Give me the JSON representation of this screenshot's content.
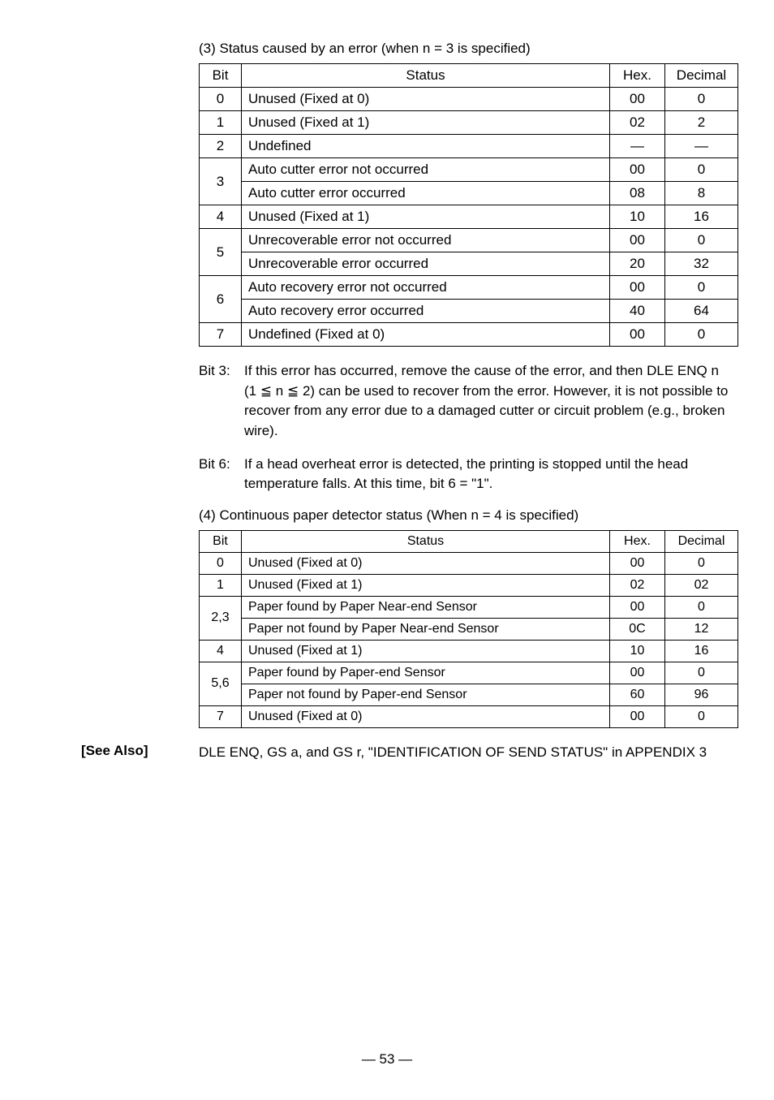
{
  "table3": {
    "caption": "(3) Status caused by an error (when n = 3 is specified)",
    "headers": {
      "bit": "Bit",
      "status": "Status",
      "hex": "Hex.",
      "dec": "Decimal"
    },
    "rows": [
      {
        "bit": "0",
        "status": "Unused (Fixed at 0)",
        "hex": "00",
        "dec": "0"
      },
      {
        "bit": "1",
        "status": "Unused (Fixed at 1)",
        "hex": "02",
        "dec": "2"
      },
      {
        "bit": "2",
        "status": "Undefined",
        "hex": "—",
        "dec": "—"
      },
      {
        "bit": "3",
        "status": "Auto cutter error not occurred",
        "hex": "00",
        "dec": "0",
        "rowspan": 2
      },
      {
        "status": "Auto cutter error occurred",
        "hex": "08",
        "dec": "8"
      },
      {
        "bit": "4",
        "status": "Unused (Fixed at 1)",
        "hex": "10",
        "dec": "16"
      },
      {
        "bit": "5",
        "status": "Unrecoverable error not occurred",
        "hex": "00",
        "dec": "0",
        "rowspan": 2
      },
      {
        "status": "Unrecoverable error occurred",
        "hex": "20",
        "dec": "32"
      },
      {
        "bit": "6",
        "status": "Auto recovery error not occurred",
        "hex": "00",
        "dec": "0",
        "rowspan": 2
      },
      {
        "status": "Auto recovery error occurred",
        "hex": "40",
        "dec": "64"
      },
      {
        "bit": "7",
        "status": "Undefined (Fixed at 0)",
        "hex": "00",
        "dec": "0"
      }
    ]
  },
  "bit3": {
    "label": "Bit 3:",
    "text": "If this error has occurred, remove the cause of the error, and then DLE ENQ n (1 ≦ n ≦ 2) can be used to recover from the error. However, it is not possible to recover from any error due to a damaged cutter or circuit problem (e.g., broken wire)."
  },
  "bit6": {
    "label": "Bit 6:",
    "text": "If a head overheat error is detected, the printing is stopped until the head temperature falls.  At this time, bit 6 = \"1\"."
  },
  "table4": {
    "caption": "(4) Continuous paper detector status (When n = 4 is specified)",
    "headers": {
      "bit": "Bit",
      "status": "Status",
      "hex": "Hex.",
      "dec": "Decimal"
    },
    "rows": [
      {
        "bit": "0",
        "status": "Unused (Fixed at 0)",
        "hex": "00",
        "dec": "0"
      },
      {
        "bit": "1",
        "status": "Unused (Fixed at 1)",
        "hex": "02",
        "dec": "02"
      },
      {
        "bit": "2,3",
        "status": "Paper found by Paper Near-end Sensor",
        "hex": "00",
        "dec": "0",
        "rowspan": 2
      },
      {
        "status": "Paper not found by Paper Near-end Sensor",
        "hex": "0C",
        "dec": "12"
      },
      {
        "bit": "4",
        "status": "Unused (Fixed at 1)",
        "hex": "10",
        "dec": "16"
      },
      {
        "bit": "5,6",
        "status": "Paper found by Paper-end Sensor",
        "hex": "00",
        "dec": "0",
        "rowspan": 2
      },
      {
        "status": "Paper not found by Paper-end Sensor",
        "hex": "60",
        "dec": "96"
      },
      {
        "bit": "7",
        "status": "Unused (Fixed at 0)",
        "hex": "00",
        "dec": "0"
      }
    ]
  },
  "seeAlso": {
    "label": "[See Also]",
    "text": "DLE ENQ, GS a, and GS r, \"IDENTIFICATION OF SEND STATUS\" in APPENDIX 3"
  },
  "pageNum": "— 53 —"
}
